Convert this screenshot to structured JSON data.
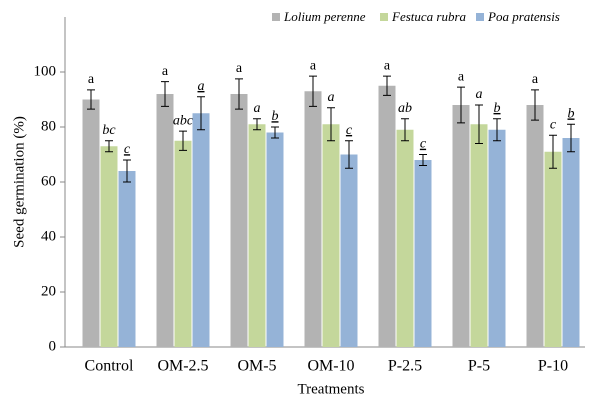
{
  "chart_data": {
    "type": "bar",
    "x_label": "Treatments",
    "y_label": "Seed germination (%)",
    "categories": [
      "Control",
      "OM-2.5",
      "OM-5",
      "OM-10",
      "P-2.5",
      "P-5",
      "P-10"
    ],
    "series": [
      {
        "name": "Lolium perenne",
        "color": "#b3b3b3",
        "values": [
          90,
          92,
          92,
          93,
          95,
          88,
          88
        ],
        "errors": [
          3.5,
          4.5,
          5.5,
          5.5,
          3.5,
          6.5,
          5.5
        ],
        "labels": [
          "a",
          "a",
          "a",
          "a",
          "a",
          "a",
          "a"
        ]
      },
      {
        "name": "Festuca rubra",
        "color": "#c4d79b",
        "values": [
          73,
          75,
          81,
          81,
          79,
          81,
          71
        ],
        "errors": [
          2,
          3.5,
          2,
          6,
          4,
          7,
          6
        ],
        "labels": [
          "bc",
          "abc",
          "a",
          "a",
          "ab",
          "a",
          "c"
        ]
      },
      {
        "name": "Poa pratensis",
        "color": "#95b3d7",
        "values": [
          64,
          85,
          78,
          70,
          68,
          79,
          76
        ],
        "errors": [
          4,
          6,
          2,
          5,
          2,
          4,
          5
        ],
        "labels": [
          "c",
          "a",
          "b",
          "c",
          "c",
          "b",
          "b"
        ]
      }
    ],
    "ylim": [
      0,
      120
    ],
    "yticks": [
      0,
      20,
      40,
      60,
      80,
      100
    ],
    "legend": "top-right"
  }
}
